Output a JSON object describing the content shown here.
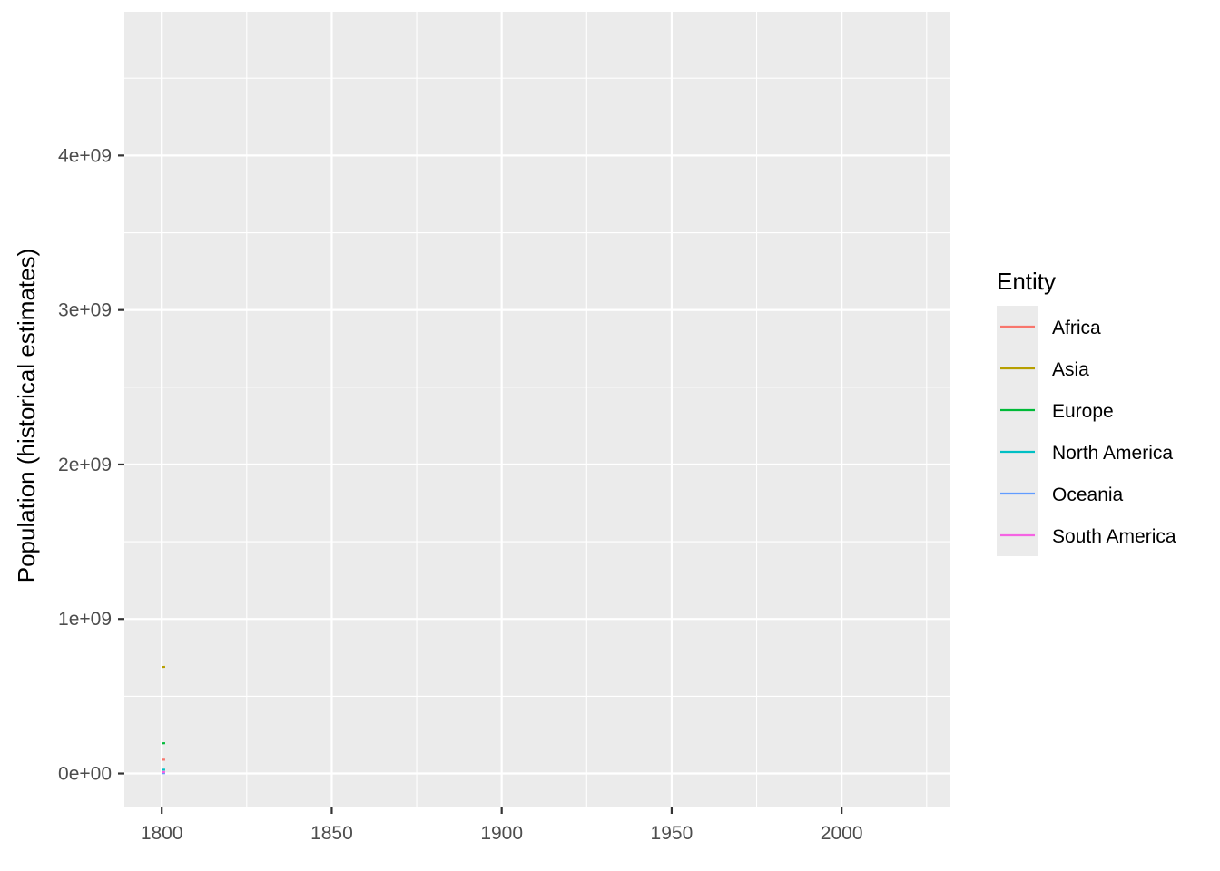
{
  "chart_data": {
    "type": "line",
    "title": "",
    "xlabel": "",
    "ylabel": "Population (historical estimates)",
    "xlim": [
      1789,
      2032
    ],
    "ylim": [
      -220000000,
      4930000000
    ],
    "x_ticks": [
      1800,
      1850,
      1900,
      1950,
      2000
    ],
    "x_tick_labels": [
      "1800",
      "1850",
      "1900",
      "1950",
      "2000"
    ],
    "y_ticks": [
      0,
      1000000000,
      2000000000,
      3000000000,
      4000000000
    ],
    "y_tick_labels": [
      "0e+00",
      "1e+09",
      "2e+09",
      "3e+09",
      "4e+09"
    ],
    "grid": true,
    "legend": {
      "title": "Entity",
      "position": "right"
    },
    "series": [
      {
        "name": "Africa",
        "color": "#F8766D",
        "points": [
          [
            1800,
            89000000
          ],
          [
            1801,
            89200000
          ]
        ]
      },
      {
        "name": "Asia",
        "color": "#B79F00",
        "points": [
          [
            1800,
            689000000
          ],
          [
            1801,
            690500000
          ]
        ]
      },
      {
        "name": "Europe",
        "color": "#00BA38",
        "points": [
          [
            1800,
            195000000
          ],
          [
            1801,
            196000000
          ]
        ]
      },
      {
        "name": "North America",
        "color": "#00BFC4",
        "points": [
          [
            1800,
            24000000
          ],
          [
            1801,
            24500000
          ]
        ]
      },
      {
        "name": "Oceania",
        "color": "#619CFF",
        "points": [
          [
            1800,
            2000000
          ],
          [
            1801,
            2000000
          ]
        ]
      },
      {
        "name": "South America",
        "color": "#F564E3",
        "points": [
          [
            1800,
            9000000
          ],
          [
            1801,
            9100000
          ]
        ]
      }
    ]
  }
}
